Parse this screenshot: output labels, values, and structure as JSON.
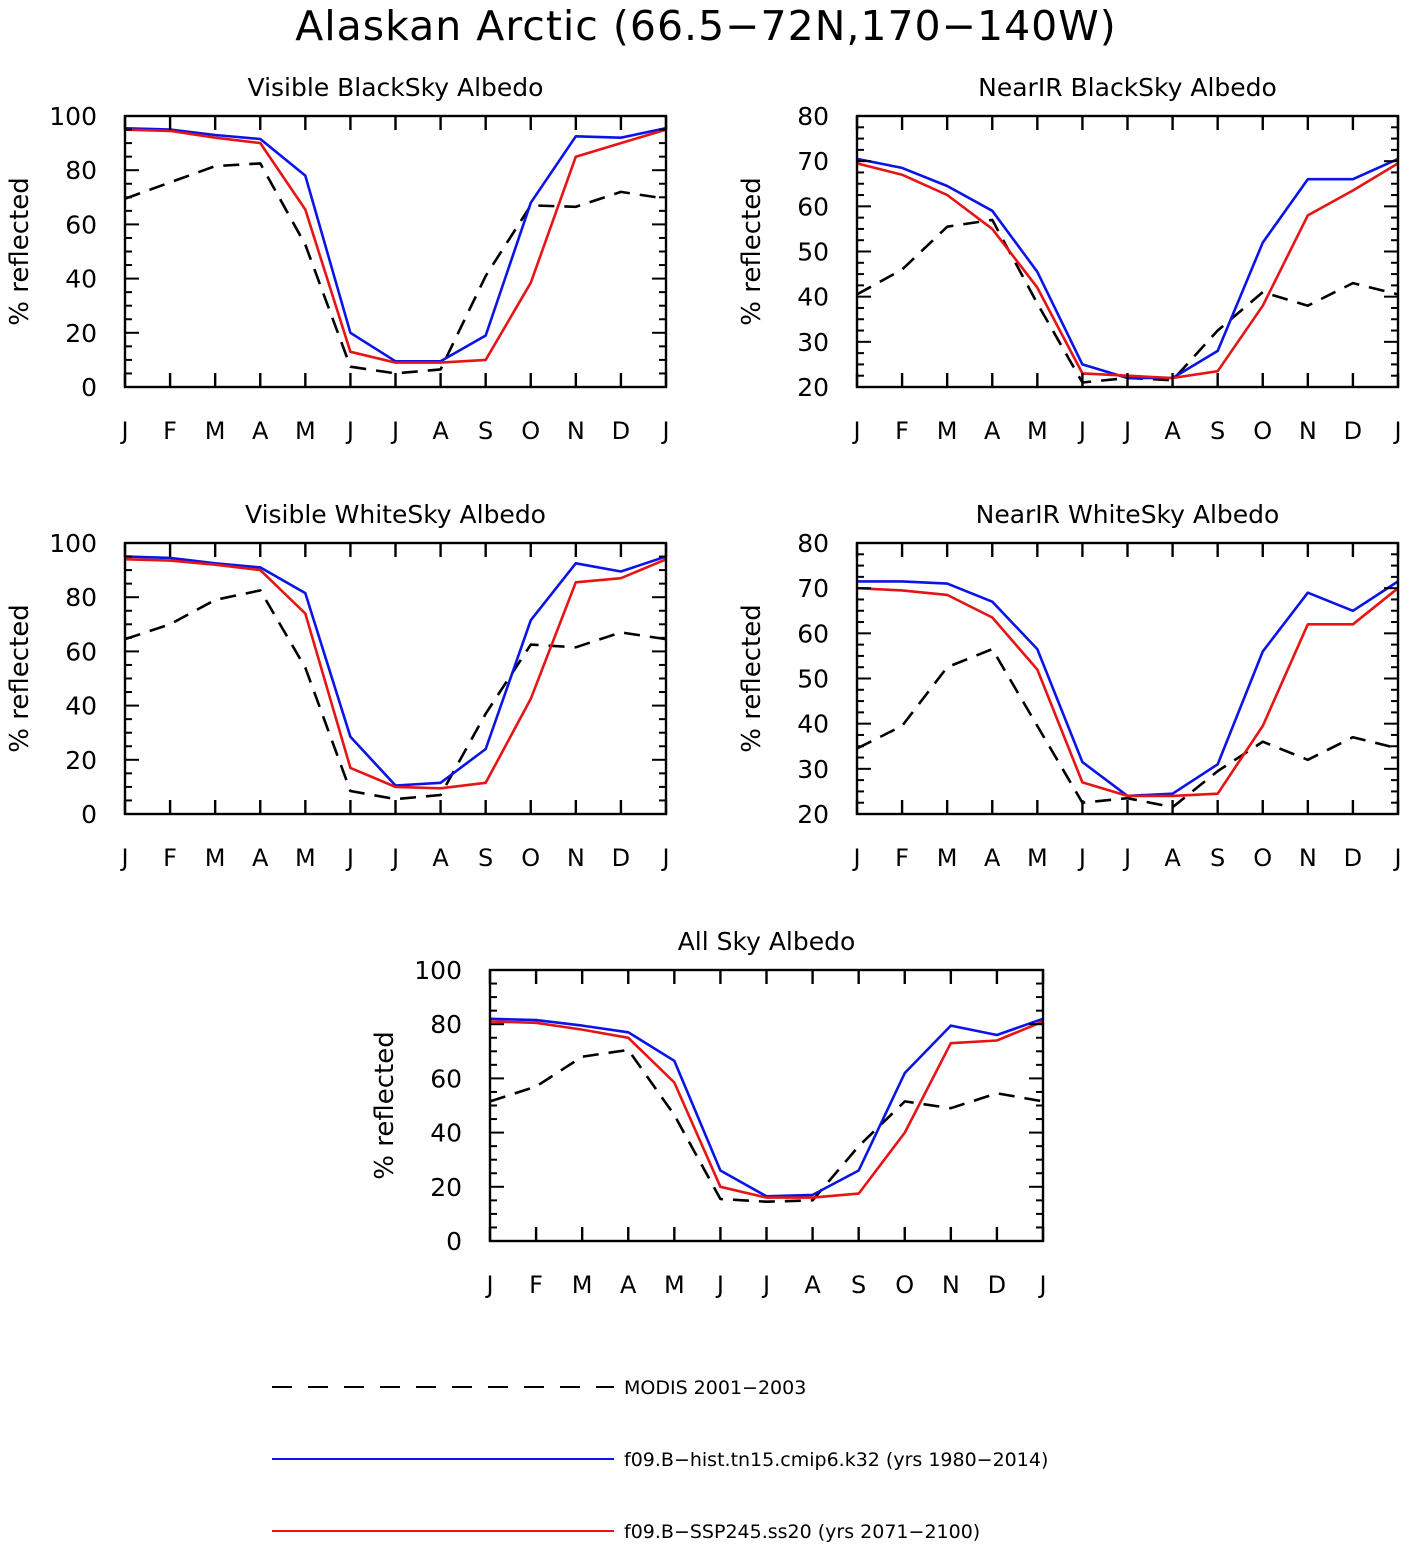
{
  "page_title": "Alaskan Arctic (66.5−72N,170−140W)",
  "colors": {
    "modis": "#000000",
    "hist": "#0a14e6",
    "ssp": "#e61414",
    "axis": "#000000"
  },
  "legend": [
    {
      "label": "MODIS 2001−2003",
      "style": "dashed",
      "color": "#000000"
    },
    {
      "label": "f09.B−hist.tn15.cmip6.k32 (yrs 1980−2014)",
      "style": "solid",
      "color": "#0a14e6"
    },
    {
      "label": "f09.B−SSP245.ss20 (yrs 2071−2100)",
      "style": "solid",
      "color": "#e61414"
    }
  ],
  "chart_data": [
    {
      "type": "line",
      "title": "Visible BlackSky Albedo",
      "ylabel": "% reflected",
      "xlabel": "",
      "categories": [
        "J",
        "F",
        "M",
        "A",
        "M",
        "J",
        "J",
        "A",
        "S",
        "O",
        "N",
        "D",
        "J"
      ],
      "ylim": [
        0,
        100
      ],
      "yticks": [
        0,
        20,
        40,
        60,
        80,
        100
      ],
      "series": [
        {
          "name": "MODIS 2001−2003",
          "values": [
            69.5,
            75.5,
            81.5,
            82.5,
            52.5,
            7.5,
            5,
            6.5,
            41,
            67,
            66.5,
            72,
            69.5
          ]
        },
        {
          "name": "f09.B−hist.tn15.cmip6.k32 (yrs 1980−2014)",
          "values": [
            95.5,
            95,
            93,
            91.5,
            78,
            20,
            9.5,
            9.5,
            19,
            68,
            92.5,
            92,
            95.5
          ]
        },
        {
          "name": "f09.B−SSP245.ss20 (yrs 2071−2100)",
          "values": [
            95,
            94.5,
            92,
            90,
            65.5,
            13,
            9,
            9,
            10,
            38.5,
            85,
            90,
            95
          ]
        }
      ]
    },
    {
      "type": "line",
      "title": "NearIR BlackSky Albedo",
      "ylabel": "% reflected",
      "xlabel": "",
      "categories": [
        "J",
        "F",
        "M",
        "A",
        "M",
        "J",
        "J",
        "A",
        "S",
        "O",
        "N",
        "D",
        "J"
      ],
      "ylim": [
        20,
        80
      ],
      "yticks": [
        20,
        30,
        40,
        50,
        60,
        70,
        80
      ],
      "series": [
        {
          "name": "MODIS 2001−2003",
          "values": [
            40.5,
            46,
            55.5,
            57,
            38.5,
            21,
            22,
            21.5,
            32.5,
            41,
            38,
            43,
            40.5
          ]
        },
        {
          "name": "f09.B−hist.tn15.cmip6.k32 (yrs 1980−2014)",
          "values": [
            70.5,
            68.5,
            64.5,
            59,
            45.5,
            25,
            22,
            22,
            28,
            52,
            66,
            66,
            70.5
          ]
        },
        {
          "name": "f09.B−SSP245.ss20 (yrs 2071−2100)",
          "values": [
            69.5,
            67,
            62.5,
            55,
            42,
            23,
            22.5,
            22,
            23.5,
            38,
            58,
            63.5,
            69.5
          ]
        }
      ]
    },
    {
      "type": "line",
      "title": "Visible WhiteSky Albedo",
      "ylabel": "% reflected",
      "xlabel": "",
      "categories": [
        "J",
        "F",
        "M",
        "A",
        "M",
        "J",
        "J",
        "A",
        "S",
        "O",
        "N",
        "D",
        "J"
      ],
      "ylim": [
        0,
        100
      ],
      "yticks": [
        0,
        20,
        40,
        60,
        80,
        100
      ],
      "series": [
        {
          "name": "MODIS 2001−2003",
          "values": [
            64.5,
            70,
            79,
            82.5,
            54,
            8.5,
            5.5,
            7,
            37,
            62.5,
            61.5,
            67,
            64.5
          ]
        },
        {
          "name": "f09.B−hist.tn15.cmip6.k32 (yrs 1980−2014)",
          "values": [
            95,
            94.5,
            92.5,
            91,
            81.5,
            28.5,
            10.5,
            11.5,
            24,
            71.5,
            92.5,
            89.5,
            95
          ]
        },
        {
          "name": "f09.B−SSP245.ss20 (yrs 2071−2100)",
          "values": [
            94,
            93.5,
            92,
            90,
            74,
            17,
            10,
            9.5,
            11.5,
            42.5,
            85.5,
            87,
            94
          ]
        }
      ]
    },
    {
      "type": "line",
      "title": "NearIR WhiteSky Albedo",
      "ylabel": "% reflected",
      "xlabel": "",
      "categories": [
        "J",
        "F",
        "M",
        "A",
        "M",
        "J",
        "J",
        "A",
        "S",
        "O",
        "N",
        "D",
        "J"
      ],
      "ylim": [
        20,
        80
      ],
      "yticks": [
        20,
        30,
        40,
        50,
        60,
        70,
        80
      ],
      "series": [
        {
          "name": "MODIS 2001−2003",
          "values": [
            34.5,
            39.5,
            52.5,
            56.5,
            39.5,
            22.5,
            23.5,
            21.5,
            29.5,
            36,
            32,
            37,
            34.5
          ]
        },
        {
          "name": "f09.B−hist.tn15.cmip6.k32 (yrs 1980−2014)",
          "values": [
            71.5,
            71.5,
            71,
            67,
            56.5,
            31.5,
            24,
            24.5,
            31,
            56,
            69,
            65,
            71.5
          ]
        },
        {
          "name": "f09.B−SSP245.ss20 (yrs 2071−2100)",
          "values": [
            70,
            69.5,
            68.5,
            63.5,
            52,
            27,
            24,
            24,
            24.5,
            39.5,
            62,
            62,
            70
          ]
        }
      ]
    },
    {
      "type": "line",
      "title": "All Sky Albedo",
      "ylabel": "% reflected",
      "xlabel": "",
      "categories": [
        "J",
        "F",
        "M",
        "A",
        "M",
        "J",
        "J",
        "A",
        "S",
        "O",
        "N",
        "D",
        "J"
      ],
      "ylim": [
        0,
        100
      ],
      "yticks": [
        0,
        20,
        40,
        60,
        80,
        100
      ],
      "series": [
        {
          "name": "MODIS 2001−2003",
          "values": [
            51.5,
            57,
            68,
            70.5,
            46.5,
            15.5,
            14.5,
            15,
            35,
            51.5,
            49,
            54.5,
            51.5
          ]
        },
        {
          "name": "f09.B−hist.tn15.cmip6.k32 (yrs 1980−2014)",
          "values": [
            82,
            81.5,
            79.5,
            77,
            66.5,
            26,
            16.5,
            17,
            26,
            62,
            79.5,
            76,
            82
          ]
        },
        {
          "name": "f09.B−SSP245.ss20 (yrs 2071−2100)",
          "values": [
            81,
            80.5,
            78,
            75,
            58.5,
            20,
            16,
            16,
            17.5,
            40,
            73,
            74,
            81
          ]
        }
      ]
    }
  ]
}
